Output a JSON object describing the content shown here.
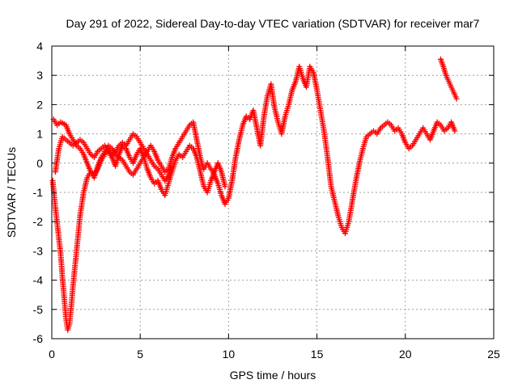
{
  "chart_data": {
    "type": "scatter",
    "title": "Day 291 of 2022, Sidereal Day-to-day VTEC variation (SDTVAR) for receiver mar7",
    "xlabel": "GPS time / hours",
    "ylabel": "SDTVAR / TECUs",
    "xlim": [
      0,
      25
    ],
    "ylim": [
      -6,
      4
    ],
    "xticks": [
      0,
      5,
      10,
      15,
      20,
      25
    ],
    "yticks": [
      -6,
      -5,
      -4,
      -3,
      -2,
      -1,
      0,
      1,
      2,
      3,
      4
    ],
    "grid": true,
    "legend": "none",
    "marker": "plus",
    "series": [
      {
        "name": "track-1",
        "color": "#ff0000",
        "points": [
          [
            0.1,
            1.5
          ],
          [
            0.3,
            1.3
          ],
          [
            0.5,
            1.4
          ],
          [
            0.8,
            1.3
          ],
          [
            1.0,
            1.0
          ],
          [
            1.2,
            0.8
          ],
          [
            1.4,
            0.6
          ],
          [
            1.6,
            0.5
          ],
          [
            1.8,
            0.3
          ],
          [
            2.0,
            0.0
          ],
          [
            2.2,
            -0.3
          ],
          [
            2.4,
            -0.5
          ],
          [
            2.6,
            -0.1
          ],
          [
            2.8,
            0.2
          ],
          [
            3.0,
            0.4
          ],
          [
            3.2,
            0.6
          ],
          [
            3.4,
            0.5
          ],
          [
            3.6,
            0.3
          ],
          [
            3.8,
            0.2
          ],
          [
            4.0,
            0.1
          ],
          [
            4.2,
            -0.1
          ],
          [
            4.4,
            -0.3
          ],
          [
            4.6,
            -0.4
          ],
          [
            4.8,
            -0.2
          ],
          [
            5.0,
            0.0
          ],
          [
            5.2,
            0.2
          ],
          [
            5.4,
            0.4
          ],
          [
            5.6,
            0.6
          ],
          [
            5.8,
            0.4
          ],
          [
            6.0,
            0.1
          ],
          [
            6.2,
            -0.1
          ],
          [
            6.4,
            -0.3
          ],
          [
            6.6,
            -0.2
          ],
          [
            6.8,
            0.2
          ],
          [
            7.0,
            0.5
          ],
          [
            7.2,
            0.7
          ],
          [
            7.4,
            0.9
          ],
          [
            7.6,
            1.1
          ],
          [
            7.8,
            1.3
          ],
          [
            8.0,
            1.4
          ],
          [
            8.2,
            0.8
          ],
          [
            8.4,
            0.2
          ],
          [
            8.6,
            -0.2
          ],
          [
            8.8,
            0.0
          ],
          [
            9.0,
            -0.2
          ],
          [
            9.2,
            -0.4
          ],
          [
            9.4,
            -0.7
          ],
          [
            9.6,
            -1.1
          ],
          [
            9.8,
            -1.4
          ],
          [
            10.0,
            -1.2
          ],
          [
            10.2,
            -0.6
          ],
          [
            10.4,
            0.2
          ],
          [
            10.6,
            0.8
          ],
          [
            10.8,
            1.3
          ],
          [
            11.0,
            1.6
          ],
          [
            11.2,
            1.5
          ],
          [
            11.4,
            1.8
          ],
          [
            11.6,
            1.2
          ],
          [
            11.8,
            0.6
          ],
          [
            12.0,
            1.6
          ],
          [
            12.2,
            2.3
          ],
          [
            12.4,
            2.7
          ],
          [
            12.6,
            1.9
          ],
          [
            12.8,
            1.4
          ],
          [
            13.0,
            1.0
          ],
          [
            13.2,
            1.6
          ],
          [
            13.4,
            2.0
          ],
          [
            13.6,
            2.5
          ],
          [
            13.8,
            2.8
          ],
          [
            14.0,
            3.3
          ],
          [
            14.2,
            2.9
          ],
          [
            14.4,
            2.6
          ],
          [
            14.6,
            3.3
          ],
          [
            14.8,
            3.1
          ],
          [
            15.0,
            2.5
          ],
          [
            15.2,
            1.8
          ],
          [
            15.4,
            1.1
          ],
          [
            15.6,
            0.2
          ],
          [
            15.8,
            -0.8
          ],
          [
            16.0,
            -1.3
          ],
          [
            16.2,
            -1.8
          ],
          [
            16.4,
            -2.2
          ],
          [
            16.6,
            -2.4
          ],
          [
            16.8,
            -2.0
          ],
          [
            17.0,
            -1.3
          ],
          [
            17.2,
            -0.6
          ],
          [
            17.4,
            0.0
          ],
          [
            17.6,
            0.5
          ],
          [
            17.8,
            0.9
          ],
          [
            18.0,
            1.0
          ],
          [
            18.2,
            1.1
          ],
          [
            18.4,
            1.0
          ],
          [
            18.6,
            1.2
          ],
          [
            18.8,
            1.3
          ],
          [
            19.0,
            1.4
          ],
          [
            19.2,
            1.3
          ],
          [
            19.4,
            1.1
          ],
          [
            19.6,
            1.2
          ],
          [
            19.8,
            1.0
          ],
          [
            20.0,
            0.7
          ],
          [
            20.2,
            0.5
          ],
          [
            20.4,
            0.6
          ],
          [
            20.6,
            0.8
          ],
          [
            20.8,
            1.0
          ],
          [
            21.0,
            1.2
          ],
          [
            21.2,
            1.0
          ],
          [
            21.4,
            0.8
          ],
          [
            21.6,
            1.1
          ],
          [
            21.8,
            1.4
          ],
          [
            22.0,
            1.3
          ],
          [
            22.2,
            1.1
          ],
          [
            22.4,
            1.2
          ],
          [
            22.6,
            1.4
          ],
          [
            22.8,
            1.1
          ]
        ]
      },
      {
        "name": "track-2",
        "color": "#ff0000",
        "points": [
          [
            0.05,
            -0.6
          ],
          [
            0.2,
            -1.5
          ],
          [
            0.35,
            -2.3
          ],
          [
            0.5,
            -3.1
          ],
          [
            0.6,
            -3.9
          ],
          [
            0.7,
            -4.6
          ],
          [
            0.8,
            -5.3
          ],
          [
            0.9,
            -5.7
          ],
          [
            1.0,
            -5.5
          ],
          [
            1.1,
            -4.9
          ],
          [
            1.2,
            -4.2
          ],
          [
            1.4,
            -3.0
          ],
          [
            1.6,
            -1.8
          ],
          [
            1.8,
            -1.0
          ],
          [
            2.0,
            -0.5
          ],
          [
            2.2,
            -0.3
          ],
          [
            2.4,
            -0.4
          ],
          [
            2.6,
            -0.2
          ],
          [
            2.8,
            0.1
          ],
          [
            3.0,
            0.3
          ],
          [
            3.2,
            0.5
          ],
          [
            3.4,
            0.2
          ],
          [
            3.6,
            -0.1
          ],
          [
            3.8,
            0.3
          ],
          [
            4.0,
            0.6
          ],
          [
            4.2,
            0.5
          ],
          [
            4.4,
            0.2
          ],
          [
            4.6,
            0.0
          ],
          [
            4.8,
            0.3
          ],
          [
            5.0,
            0.5
          ],
          [
            5.2,
            0.2
          ],
          [
            5.4,
            -0.2
          ],
          [
            5.6,
            -0.5
          ],
          [
            5.8,
            -0.7
          ],
          [
            6.0,
            -0.6
          ],
          [
            6.2,
            -0.9
          ],
          [
            6.4,
            -1.1
          ],
          [
            6.6,
            -0.7
          ],
          [
            6.8,
            -0.3
          ],
          [
            7.0,
            0.1
          ],
          [
            7.2,
            0.3
          ],
          [
            7.4,
            0.2
          ],
          [
            7.6,
            0.4
          ],
          [
            7.8,
            0.6
          ],
          [
            8.0,
            0.5
          ],
          [
            8.2,
            0.2
          ],
          [
            8.4,
            -0.3
          ],
          [
            8.6,
            -0.8
          ],
          [
            8.8,
            -1.0
          ],
          [
            9.0,
            -0.6
          ],
          [
            9.2,
            -0.3
          ],
          [
            9.4,
            0.0
          ],
          [
            9.6,
            -0.3
          ],
          [
            9.8,
            -0.8
          ]
        ]
      },
      {
        "name": "track-3",
        "color": "#ff0000",
        "points": [
          [
            0.2,
            -0.3
          ],
          [
            0.4,
            0.5
          ],
          [
            0.6,
            0.9
          ],
          [
            0.8,
            0.8
          ],
          [
            1.0,
            0.7
          ],
          [
            1.2,
            0.6
          ],
          [
            1.4,
            0.7
          ],
          [
            1.6,
            0.8
          ],
          [
            1.8,
            0.7
          ],
          [
            2.0,
            0.5
          ],
          [
            2.2,
            0.3
          ],
          [
            2.4,
            0.2
          ],
          [
            2.6,
            0.4
          ],
          [
            2.8,
            0.5
          ],
          [
            3.0,
            0.6
          ],
          [
            3.2,
            0.4
          ],
          [
            3.4,
            0.2
          ],
          [
            3.6,
            0.4
          ],
          [
            3.8,
            0.6
          ],
          [
            4.0,
            0.7
          ],
          [
            4.2,
            0.6
          ],
          [
            4.4,
            0.8
          ],
          [
            4.6,
            1.0
          ],
          [
            4.8,
            0.9
          ],
          [
            5.0,
            0.7
          ],
          [
            5.2,
            0.5
          ],
          [
            5.4,
            0.3
          ],
          [
            5.6,
            0.1
          ],
          [
            5.8,
            -0.1
          ],
          [
            6.0,
            -0.2
          ],
          [
            6.2,
            -0.4
          ],
          [
            6.4,
            -0.6
          ],
          [
            6.6,
            -0.4
          ],
          [
            6.8,
            -0.1
          ]
        ]
      },
      {
        "name": "track-4",
        "color": "#ff0000",
        "points": [
          [
            22.0,
            3.55
          ],
          [
            22.15,
            3.3
          ],
          [
            22.3,
            3.0
          ],
          [
            22.45,
            2.8
          ],
          [
            22.6,
            2.6
          ],
          [
            22.75,
            2.4
          ],
          [
            22.9,
            2.2
          ]
        ]
      }
    ]
  }
}
